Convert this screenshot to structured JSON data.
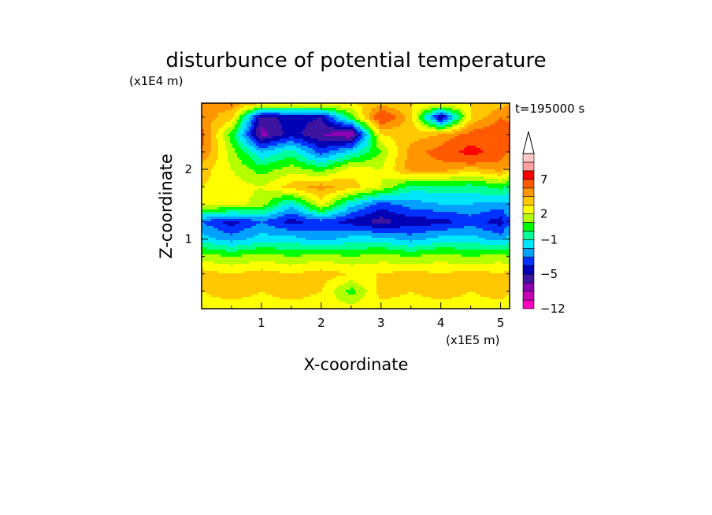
{
  "chart_data": {
    "type": "heatmap",
    "title": "disturbunce of potential temperature",
    "xlabel": "X-coordinate",
    "ylabel": "Z-coordinate",
    "x_scale_label": "(x1E5 m)",
    "y_scale_label": "(x1E4 m)",
    "time_label": "t=195000 s",
    "xlim": [
      0,
      5.15
    ],
    "ylim": [
      0,
      2.95
    ],
    "x_ticks": [
      1,
      2,
      3,
      4,
      5
    ],
    "x_tick_labels": [
      "1",
      "2",
      "3",
      "4",
      "5"
    ],
    "y_ticks": [
      1,
      2
    ],
    "y_tick_labels": [
      "1",
      "2"
    ],
    "colorbar": {
      "extend": "max",
      "levels": [
        -12,
        -10,
        -8,
        -6,
        -5,
        -4,
        -3,
        -2,
        -1,
        0,
        1,
        2,
        3,
        4,
        5,
        7,
        9,
        11
      ],
      "tick_values": [
        -12,
        -5,
        -1,
        2,
        7
      ],
      "tick_labels": [
        "−12",
        "−5",
        "−1",
        "2",
        "7"
      ],
      "colors": [
        "#ff00c0",
        "#c800b4",
        "#8c00b4",
        "#3c14a0",
        "#0000b4",
        "#0032ff",
        "#00a0ff",
        "#00e6ff",
        "#00ff96",
        "#00ff00",
        "#b4ff00",
        "#ffff00",
        "#ffc800",
        "#ff9600",
        "#ff5a00",
        "#ff0000",
        "#ffa0a0",
        "#ffc8c8"
      ]
    },
    "field": {
      "description_units": "theta' values on a coarse x-z grid; x in 1E5 m, z in 1E4 m",
      "x": [
        0.0,
        0.5,
        1.0,
        1.5,
        2.0,
        2.5,
        3.0,
        3.5,
        4.0,
        4.5,
        5.0,
        5.15
      ],
      "z": [
        0.0,
        0.25,
        0.5,
        0.75,
        1.0,
        1.25,
        1.5,
        1.75,
        2.0,
        2.25,
        2.5,
        2.75,
        2.95
      ],
      "values": [
        [
          2.5,
          2.5,
          2.5,
          2.5,
          2.5,
          2.5,
          2.5,
          2.5,
          2.5,
          2.5,
          2.5,
          2.5
        ],
        [
          3.0,
          3.5,
          3.0,
          3.5,
          3.0,
          0.5,
          3.5,
          3.0,
          3.5,
          3.0,
          3.5,
          3.0
        ],
        [
          3.5,
          3.0,
          3.5,
          3.0,
          3.5,
          3.0,
          3.0,
          3.5,
          3.0,
          3.5,
          3.0,
          3.5
        ],
        [
          1.5,
          1.0,
          1.5,
          1.0,
          1.5,
          1.0,
          1.5,
          1.0,
          1.5,
          1.0,
          1.5,
          1.0
        ],
        [
          -1.5,
          -2.5,
          -1.5,
          -1.5,
          -2.5,
          -1.5,
          -1.5,
          -2.5,
          -1.5,
          -1.5,
          -2.5,
          -1.5
        ],
        [
          -3.0,
          -4.5,
          -3.0,
          -4.5,
          -3.5,
          -4.5,
          -5.5,
          -4.5,
          -4.5,
          -3.5,
          -4.5,
          -3.0
        ],
        [
          2.5,
          2.5,
          1.5,
          -1.5,
          2.5,
          -1.5,
          -3.5,
          -2.5,
          -2.0,
          -2.0,
          -2.5,
          -2.0
        ],
        [
          3.0,
          2.5,
          2.0,
          3.5,
          4.5,
          3.5,
          2.0,
          -0.5,
          -0.5,
          -0.5,
          0.5,
          -0.5
        ],
        [
          3.5,
          2.0,
          0.5,
          1.5,
          0.5,
          2.5,
          2.0,
          4.5,
          4.5,
          3.5,
          4.5,
          3.5
        ],
        [
          5.0,
          1.5,
          -2.0,
          -0.5,
          -3.5,
          -1.5,
          1.0,
          4.5,
          5.5,
          8.0,
          5.5,
          5.0
        ],
        [
          5.5,
          0.5,
          -6.5,
          -4.5,
          -6.0,
          -7.0,
          3.0,
          3.5,
          4.0,
          5.5,
          6.0,
          6.5
        ],
        [
          4.5,
          3.5,
          -5.5,
          -4.5,
          -5.0,
          0.5,
          6.5,
          3.5,
          -5.5,
          3.0,
          5.0,
          4.5
        ],
        [
          4.0,
          4.5,
          3.5,
          3.0,
          3.5,
          3.0,
          3.5,
          3.0,
          3.5,
          3.0,
          3.5,
          4.0
        ]
      ]
    }
  }
}
